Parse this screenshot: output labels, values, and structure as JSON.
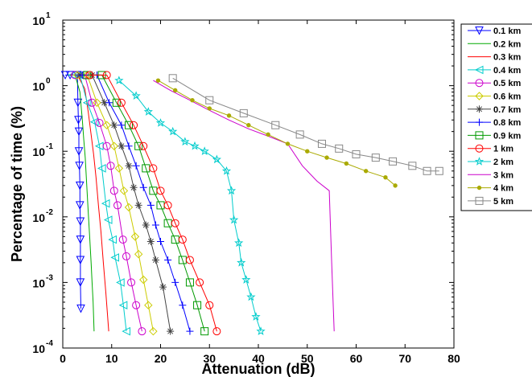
{
  "chart_data": {
    "type": "line",
    "xlabel": "Attenuation (dB)",
    "ylabel": "Percentage of time (%)",
    "xlim": [
      0,
      80
    ],
    "ylim_exponents": [
      -4,
      1
    ],
    "y_scale": "log",
    "grid": false,
    "legend_position": "outside top-right",
    "x_ticks": [
      "0",
      "10",
      "20",
      "30",
      "40",
      "50",
      "60",
      "70",
      "80"
    ],
    "y_ticks": [
      {
        "base": "10",
        "exp": "-4"
      },
      {
        "base": "10",
        "exp": "-3"
      },
      {
        "base": "10",
        "exp": "-2"
      },
      {
        "base": "10",
        "exp": "-1"
      },
      {
        "base": "10",
        "exp": "0"
      },
      {
        "base": "10",
        "exp": "1"
      }
    ],
    "series": [
      {
        "name": "0.1 km",
        "color": "#0000ff",
        "marker": "triangle-down",
        "x": [
          0.5,
          1.5,
          3.0,
          3.1,
          3.2,
          3.3,
          3.3,
          3.4,
          3.5,
          3.5,
          3.6,
          3.6,
          3.6,
          3.6,
          3.7
        ],
        "y": [
          1.45,
          1.45,
          1.45,
          0.55,
          0.3,
          0.2,
          0.1,
          0.06,
          0.03,
          0.015,
          0.0085,
          0.0045,
          0.0022,
          0.001,
          0.0004
        ]
      },
      {
        "name": "0.2 km",
        "color": "#00aa00",
        "marker": "none",
        "x": [
          1.0,
          2.5,
          3.5,
          4.0,
          4.3,
          4.6,
          4.9,
          5.2,
          5.5,
          5.8,
          6.0,
          6.2,
          6.4
        ],
        "y": [
          1.45,
          1.45,
          0.8,
          0.3,
          0.15,
          0.08,
          0.03,
          0.012,
          0.005,
          0.002,
          0.001,
          0.0005,
          0.00018
        ]
      },
      {
        "name": "0.3 km",
        "color": "#ff0000",
        "marker": "none",
        "x": [
          1.5,
          3.0,
          4.5,
          5.2,
          5.8,
          6.3,
          6.8,
          7.3,
          7.8,
          8.3,
          8.8,
          9.4
        ],
        "y": [
          1.45,
          1.45,
          0.9,
          0.4,
          0.18,
          0.09,
          0.04,
          0.015,
          0.006,
          0.002,
          0.0007,
          0.00018
        ]
      },
      {
        "name": "0.4 km",
        "color": "#00cccc",
        "marker": "triangle-left",
        "x": [
          2.0,
          3.5,
          5.0,
          6.5,
          7.5,
          8.0,
          8.8,
          9.3,
          10.2,
          10.7,
          11.8,
          12.4,
          13.0
        ],
        "y": [
          1.45,
          1.45,
          0.55,
          0.28,
          0.12,
          0.055,
          0.016,
          0.009,
          0.0045,
          0.0024,
          0.001,
          0.00045,
          0.00018
        ]
      },
      {
        "name": "0.5 km",
        "color": "#cc00cc",
        "marker": "circle",
        "x": [
          2.5,
          4.5,
          6.0,
          7.5,
          9.0,
          9.8,
          10.5,
          11.2,
          12.3,
          13.0,
          14.0,
          15.0,
          16.2
        ],
        "y": [
          1.45,
          1.45,
          0.55,
          0.27,
          0.12,
          0.06,
          0.025,
          0.015,
          0.0045,
          0.0025,
          0.001,
          0.00045,
          0.00018
        ]
      },
      {
        "name": "0.6 km",
        "color": "#cccc00",
        "marker": "diamond",
        "x": [
          3.0,
          5.0,
          7.0,
          9.0,
          10.5,
          11.5,
          12.5,
          13.5,
          14.8,
          15.5,
          16.5,
          17.5,
          18.5
        ],
        "y": [
          1.45,
          1.45,
          0.55,
          0.25,
          0.12,
          0.055,
          0.025,
          0.014,
          0.005,
          0.0027,
          0.0011,
          0.00045,
          0.00018
        ]
      },
      {
        "name": "0.7 km",
        "color": "#444444",
        "marker": "asterisk",
        "x": [
          3.5,
          6.0,
          8.5,
          10.5,
          12.0,
          13.5,
          14.5,
          15.5,
          17.0,
          18.0,
          19.0,
          20.5,
          22.0
        ],
        "y": [
          1.45,
          1.45,
          0.55,
          0.25,
          0.12,
          0.06,
          0.028,
          0.015,
          0.0075,
          0.0042,
          0.0022,
          0.00085,
          0.00018
        ]
      },
      {
        "name": "0.8 km",
        "color": "#0000ff",
        "marker": "plus",
        "x": [
          4.0,
          7.0,
          9.5,
          12.0,
          13.5,
          15.0,
          16.5,
          18.0,
          19.0,
          20.0,
          21.5,
          23.0,
          24.5,
          26.0
        ],
        "y": [
          1.45,
          1.45,
          0.55,
          0.25,
          0.12,
          0.06,
          0.028,
          0.015,
          0.0075,
          0.0042,
          0.0022,
          0.001,
          0.00045,
          0.00018
        ]
      },
      {
        "name": "0.9 km",
        "color": "#009900",
        "marker": "square",
        "x": [
          5.0,
          8.0,
          11.0,
          13.5,
          15.5,
          17.0,
          18.5,
          20.0,
          21.5,
          23.0,
          24.5,
          26.0,
          27.5,
          29.0
        ],
        "y": [
          1.45,
          1.45,
          0.55,
          0.25,
          0.12,
          0.055,
          0.025,
          0.015,
          0.008,
          0.0045,
          0.0022,
          0.001,
          0.00045,
          0.00018
        ]
      },
      {
        "name": "1 km",
        "color": "#ff0000",
        "marker": "circle",
        "x": [
          5.5,
          9.0,
          12.0,
          14.5,
          16.5,
          18.5,
          20.0,
          21.5,
          23.0,
          24.5,
          26.0,
          28.0,
          30.0,
          31.5
        ],
        "y": [
          1.45,
          1.45,
          0.55,
          0.25,
          0.12,
          0.055,
          0.025,
          0.015,
          0.008,
          0.0045,
          0.0022,
          0.001,
          0.00045,
          0.00018
        ]
      },
      {
        "name": "2 km",
        "color": "#00cccc",
        "marker": "pentagram",
        "x": [
          11.5,
          15.0,
          17.5,
          20.0,
          22.5,
          25.0,
          27.0,
          29.0,
          31.5,
          33.5,
          34.5,
          35.0,
          36.0,
          36.5,
          37.5,
          38.5,
          39.5,
          40.5
        ],
        "y": [
          1.2,
          0.7,
          0.4,
          0.27,
          0.2,
          0.14,
          0.12,
          0.1,
          0.075,
          0.05,
          0.025,
          0.009,
          0.004,
          0.002,
          0.0011,
          0.0006,
          0.0003,
          0.00018
        ]
      },
      {
        "name": "3 km",
        "color": "#cc00cc",
        "marker": "none",
        "x": [
          18.5,
          22.0,
          26.0,
          30.0,
          34.0,
          38.0,
          42.0,
          46.0,
          49.0,
          52.0,
          54.5,
          55.0,
          55.5
        ],
        "y": [
          1.2,
          0.85,
          0.6,
          0.42,
          0.3,
          0.22,
          0.17,
          0.13,
          0.06,
          0.035,
          0.025,
          0.002,
          0.00018
        ]
      },
      {
        "name": "4 km",
        "color": "#aaaa00",
        "marker": "dot",
        "x": [
          19.5,
          23.0,
          26.5,
          30.0,
          34.0,
          38.0,
          42.0,
          46.0,
          50.0,
          54.0,
          58.0,
          62.0,
          66.0,
          68.0
        ],
        "y": [
          1.2,
          0.85,
          0.6,
          0.45,
          0.35,
          0.25,
          0.18,
          0.13,
          0.1,
          0.08,
          0.065,
          0.05,
          0.04,
          0.03
        ]
      },
      {
        "name": "5 km",
        "color": "#888888",
        "marker": "square",
        "x": [
          22.5,
          30.0,
          37.0,
          43.5,
          48.5,
          53.0,
          56.5,
          60.0,
          64.0,
          67.5,
          71.5,
          74.5,
          77.0
        ],
        "y": [
          1.3,
          0.6,
          0.38,
          0.25,
          0.18,
          0.13,
          0.11,
          0.09,
          0.08,
          0.07,
          0.06,
          0.05,
          0.05
        ]
      }
    ]
  }
}
